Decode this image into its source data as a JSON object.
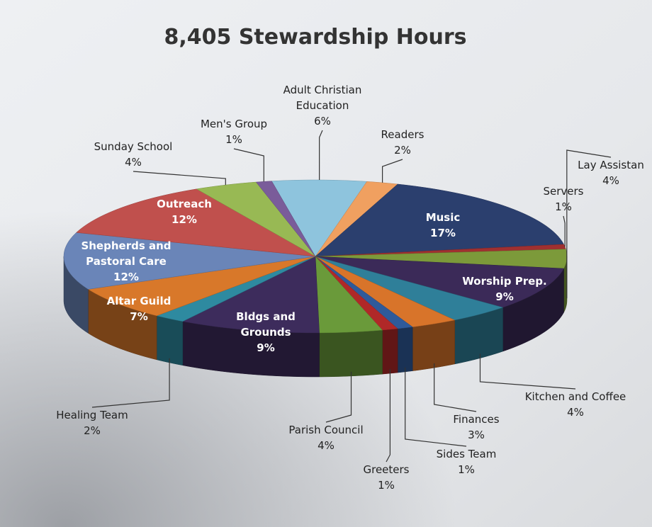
{
  "chart_data": {
    "type": "pie",
    "title": "8,405 Stewardship Hours",
    "categories": [
      "Adult Christian Education",
      "Readers",
      "Music",
      "Servers",
      "Lay Assistan",
      "Worship Prep.",
      "Kitchen and Coffee",
      "Finances",
      "Sides Team",
      "Greeters",
      "Parish Council",
      "Bldgs and Grounds",
      "Healing Team",
      "Altar Guild",
      "Shepherds and Pastoral Care",
      "Outreach",
      "Sunday School",
      "Men's Group"
    ],
    "values": [
      6,
      2,
      17,
      1,
      4,
      9,
      4,
      3,
      1,
      1,
      4,
      9,
      2,
      7,
      12,
      12,
      4,
      1
    ],
    "value_labels": [
      "6%",
      "2%",
      "17%",
      "1%",
      "4%",
      "9%",
      "4%",
      "3%",
      "1%",
      "1%",
      "4%",
      "9%",
      "2%",
      "7%",
      "12%",
      "12%",
      "4%",
      "1%"
    ],
    "colors": [
      "#8ec4dd",
      "#f0a060",
      "#2b3f6e",
      "#a03030",
      "#7c9a3a",
      "#3b2a58",
      "#2f7f99",
      "#d8742a",
      "#2f5a9a",
      "#b02828",
      "#6a9a3a",
      "#3d2c5c",
      "#2e8aa0",
      "#d8782a",
      "#6a85b8",
      "#c0504d",
      "#98b954",
      "#7a5c9a"
    ]
  }
}
